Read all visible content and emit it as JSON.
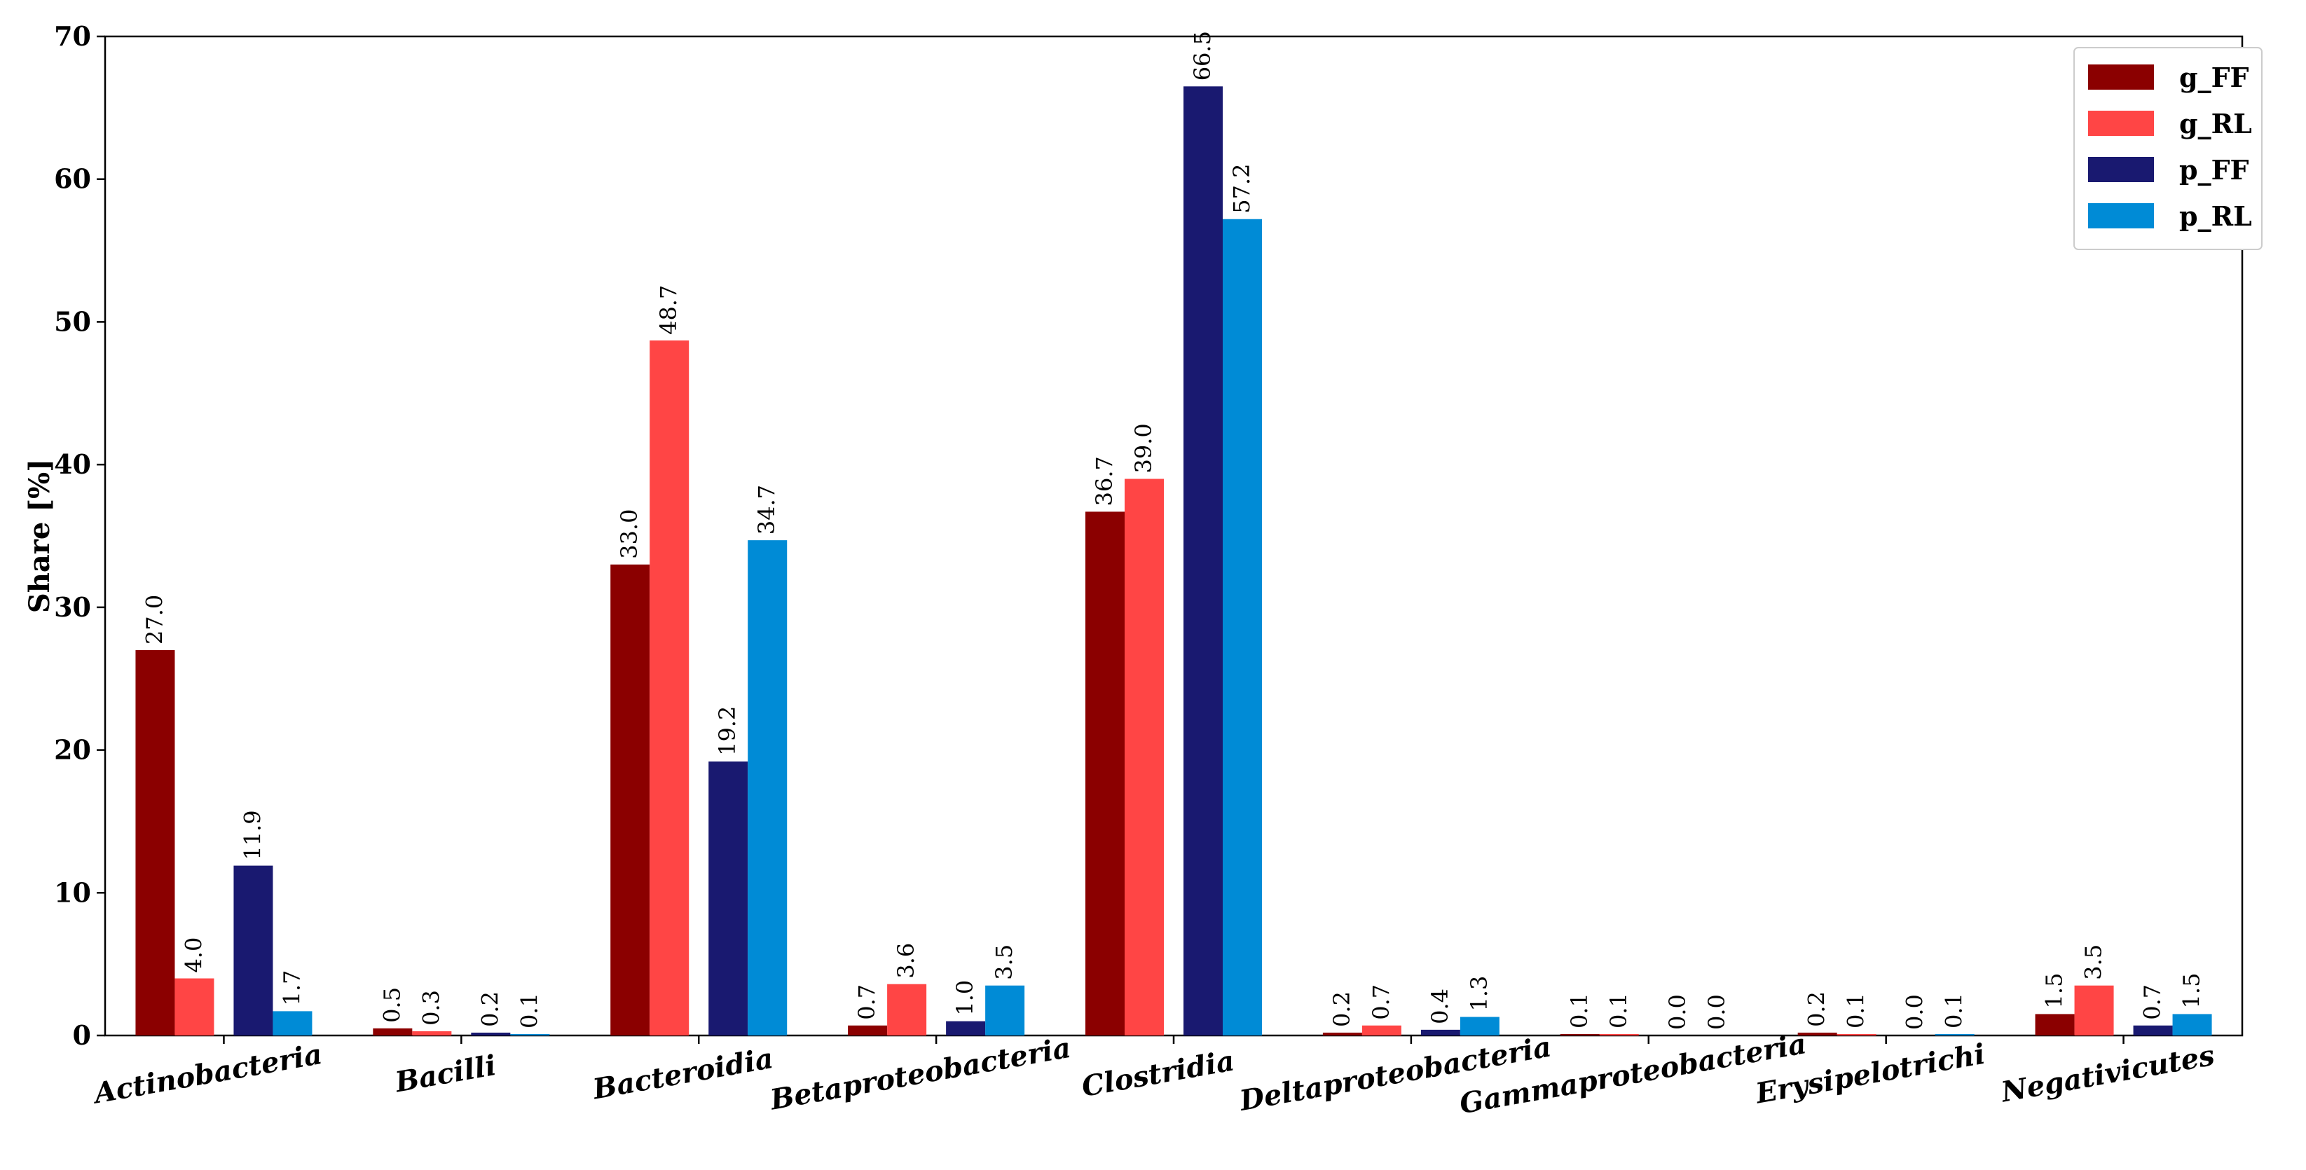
{
  "chart_data": {
    "type": "bar",
    "xlabel": "",
    "ylabel": "Share [%]",
    "ylim": [
      0,
      70
    ],
    "yticks": [
      0,
      10,
      20,
      30,
      40,
      50,
      60,
      70
    ],
    "grid": false,
    "legend_position": "top-right",
    "categories": [
      "Actinobacteria",
      "Bacilli",
      "Bacteroidia",
      "Betaproteobacteria",
      "Clostridia",
      "Deltaproteobacteria",
      "Gammaproteobacteria",
      "Erysipelotrichi",
      "Negativicutes"
    ],
    "series": [
      {
        "name": "g_FF",
        "color": "#8b0000",
        "values": [
          27.0,
          0.5,
          33.0,
          0.7,
          36.7,
          0.2,
          0.1,
          0.2,
          1.5
        ],
        "labels": [
          "27.0",
          "0.5",
          "33.0",
          "0.7",
          "36.7",
          "0.2",
          "0.1",
          "0.2",
          "1.5"
        ]
      },
      {
        "name": "g_RL",
        "color": "#ff4545",
        "values": [
          4.0,
          0.3,
          48.7,
          3.6,
          39.0,
          0.7,
          0.1,
          0.1,
          3.5
        ],
        "labels": [
          "4.0",
          "0.3",
          "48.7",
          "3.6",
          "39.0",
          "0.7",
          "0.1",
          "0.1",
          "3.5"
        ]
      },
      {
        "name": "p_FF",
        "color": "#191970",
        "values": [
          11.9,
          0.2,
          19.2,
          1.0,
          66.5,
          0.4,
          0.0,
          0.0,
          0.7
        ],
        "labels": [
          "11.9",
          "0.2",
          "19.2",
          "1.0",
          "66.5",
          "0.4",
          "0.0",
          "0.0",
          "0.7"
        ]
      },
      {
        "name": "p_RL",
        "color": "#008bd6",
        "values": [
          1.7,
          0.1,
          34.7,
          3.5,
          57.2,
          1.3,
          0.0,
          0.1,
          1.5
        ],
        "labels": [
          "1.7",
          "0.1",
          "34.7",
          "3.5",
          "57.2",
          "1.3",
          "0.0",
          "0.1",
          "1.5"
        ]
      }
    ]
  }
}
